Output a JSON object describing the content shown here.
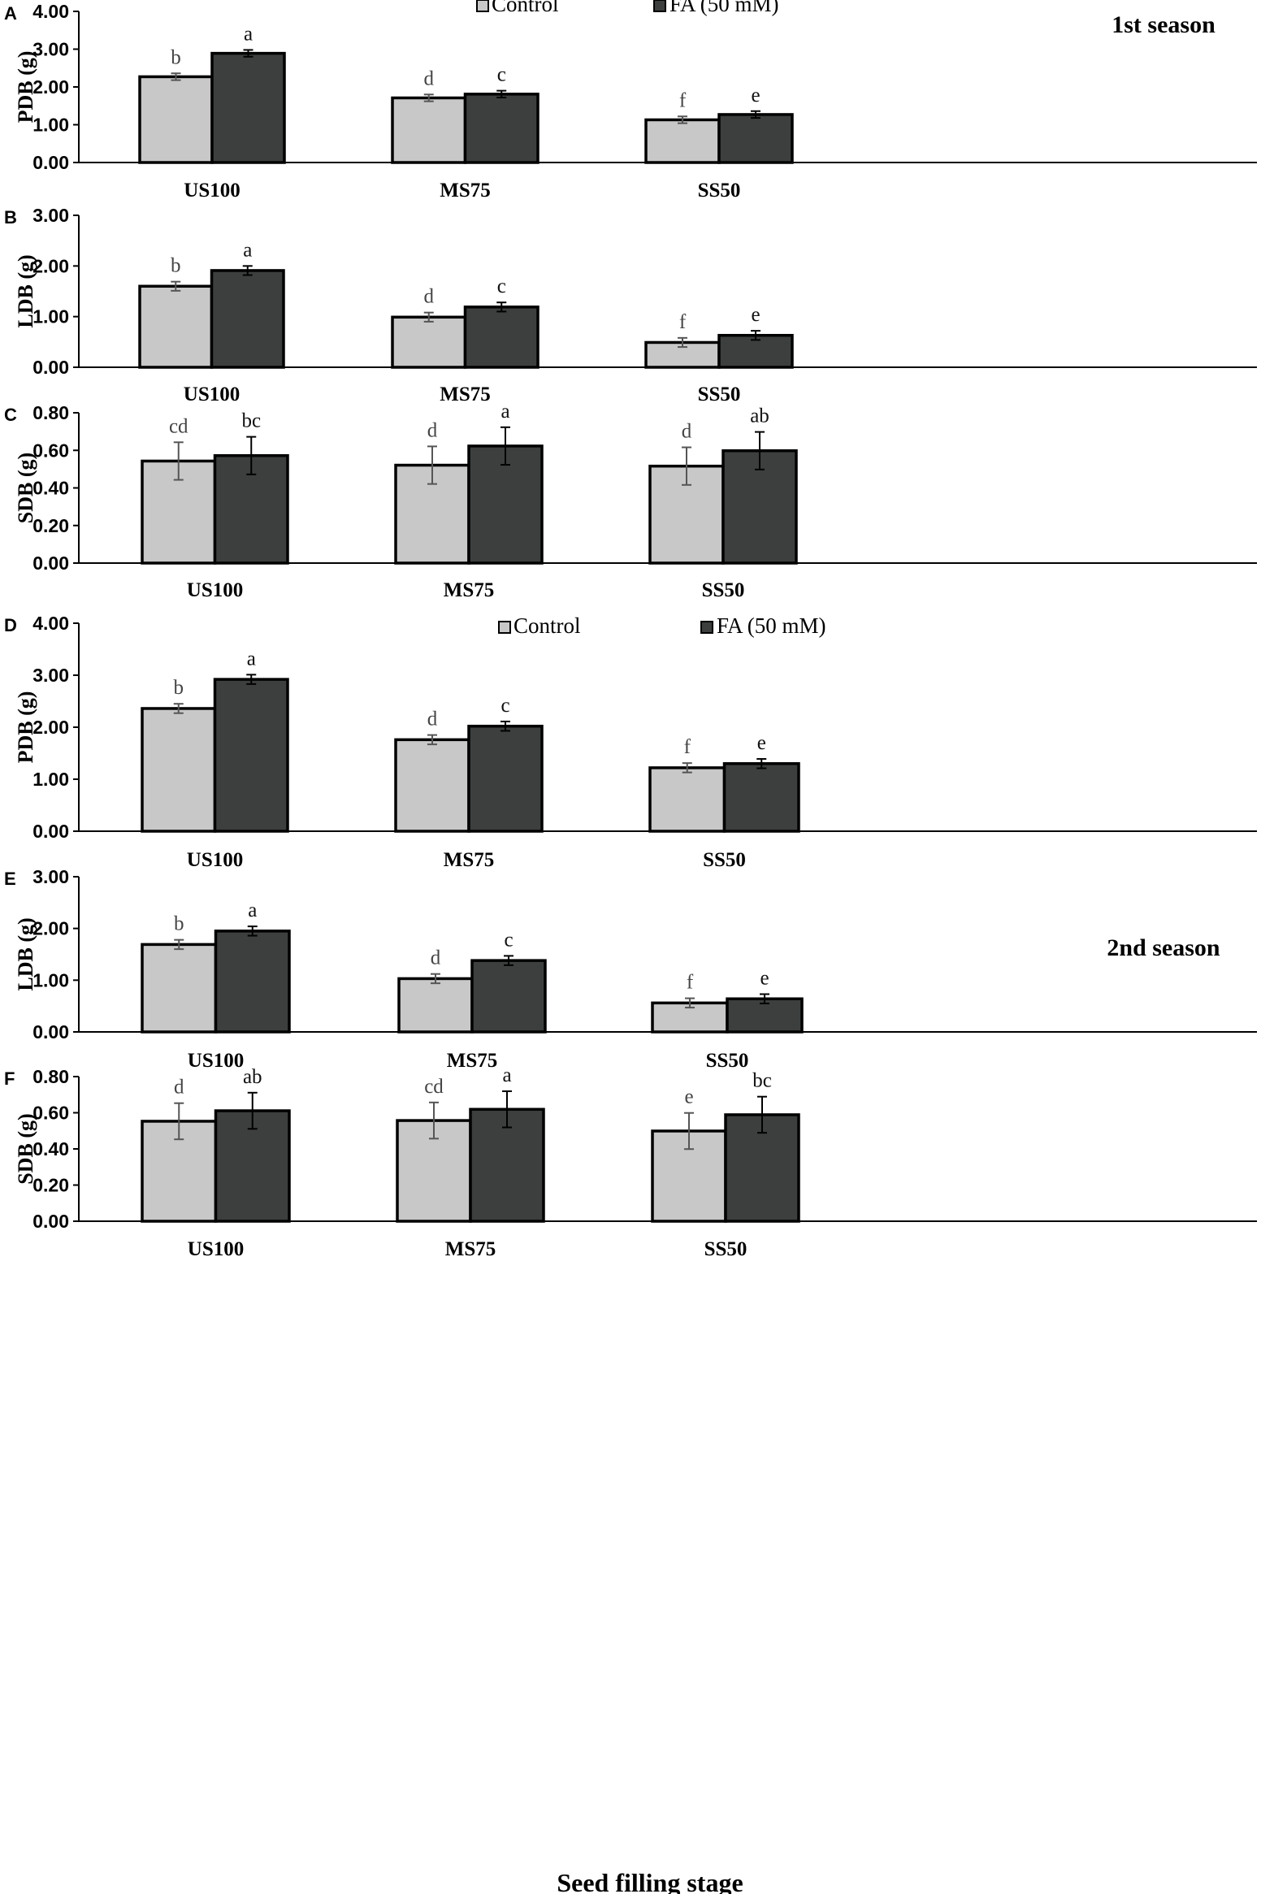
{
  "legend": {
    "control": "Control",
    "fa": "FA (50 mM)"
  },
  "colors": {
    "control": "#c8c8c8",
    "fa": "#3d3f3f",
    "outline": "#000000"
  },
  "x_title": "Seed filling stage",
  "chart_data": [
    {
      "panel": "A",
      "type": "bar",
      "ylabel": "PDB (g)",
      "season": "1st season",
      "ylim": [
        0,
        4
      ],
      "yticks": [
        "0.00",
        "1.00",
        "2.00",
        "3.00",
        "4.00"
      ],
      "categories": [
        "US100",
        "MS75",
        "SS50"
      ],
      "series": [
        {
          "name": "Control",
          "values": [
            2.27,
            1.71,
            1.13
          ],
          "errors": [
            0.09,
            0.09,
            0.09
          ],
          "letters": [
            "b",
            "d",
            "f"
          ]
        },
        {
          "name": "FA (50 mM)",
          "values": [
            2.89,
            1.81,
            1.27
          ],
          "errors": [
            0.09,
            0.09,
            0.09
          ],
          "letters": [
            "a",
            "c",
            "e"
          ]
        }
      ]
    },
    {
      "panel": "B",
      "type": "bar",
      "ylabel": "LDB (g)",
      "season": "",
      "ylim": [
        0,
        3
      ],
      "yticks": [
        "0.00",
        "1.00",
        "2.00",
        "3.00"
      ],
      "categories": [
        "US100",
        "MS75",
        "SS50"
      ],
      "series": [
        {
          "name": "Control",
          "values": [
            1.6,
            0.99,
            0.49
          ],
          "errors": [
            0.09,
            0.09,
            0.09
          ],
          "letters": [
            "b",
            "d",
            "f"
          ]
        },
        {
          "name": "FA (50 mM)",
          "values": [
            1.91,
            1.19,
            0.63
          ],
          "errors": [
            0.09,
            0.09,
            0.09
          ],
          "letters": [
            "a",
            "c",
            "e"
          ]
        }
      ]
    },
    {
      "panel": "C",
      "type": "bar",
      "ylabel": "SDB (g)",
      "season": "",
      "ylim": [
        0,
        0.8
      ],
      "yticks": [
        "0.00",
        "0.20",
        "0.40",
        "0.60",
        "0.80"
      ],
      "categories": [
        "US100",
        "MS75",
        "SS50"
      ],
      "series": [
        {
          "name": "Control",
          "values": [
            0.543,
            0.521,
            0.516
          ],
          "errors": [
            0.1,
            0.1,
            0.1
          ],
          "letters": [
            "cd",
            "d",
            "d"
          ]
        },
        {
          "name": "FA (50 mM)",
          "values": [
            0.572,
            0.623,
            0.598
          ],
          "errors": [
            0.1,
            0.1,
            0.1
          ],
          "letters": [
            "bc",
            "a",
            "ab"
          ]
        }
      ]
    },
    {
      "panel": "D",
      "type": "bar",
      "ylabel": "PDB (g)",
      "season": "2nd season",
      "ylim": [
        0,
        4
      ],
      "yticks": [
        "0.00",
        "1.00",
        "2.00",
        "3.00",
        "4.00"
      ],
      "categories": [
        "US100",
        "MS75",
        "SS50"
      ],
      "series": [
        {
          "name": "Control",
          "values": [
            2.36,
            1.76,
            1.22
          ],
          "errors": [
            0.09,
            0.09,
            0.09
          ],
          "letters": [
            "b",
            "d",
            "f"
          ]
        },
        {
          "name": "FA (50 mM)",
          "values": [
            2.92,
            2.02,
            1.3
          ],
          "errors": [
            0.09,
            0.09,
            0.09
          ],
          "letters": [
            "a",
            "c",
            "e"
          ]
        }
      ]
    },
    {
      "panel": "E",
      "type": "bar",
      "ylabel": "LDB (g)",
      "season": "",
      "ylim": [
        0,
        3
      ],
      "yticks": [
        "0.00",
        "1.00",
        "2.00",
        "3.00"
      ],
      "categories": [
        "US100",
        "MS75",
        "SS50"
      ],
      "series": [
        {
          "name": "Control",
          "values": [
            1.69,
            1.03,
            0.56
          ],
          "errors": [
            0.09,
            0.09,
            0.09
          ],
          "letters": [
            "b",
            "d",
            "f"
          ]
        },
        {
          "name": "FA (50 mM)",
          "values": [
            1.95,
            1.38,
            0.64
          ],
          "errors": [
            0.09,
            0.09,
            0.09
          ],
          "letters": [
            "a",
            "c",
            "e"
          ]
        }
      ]
    },
    {
      "panel": "F",
      "type": "bar",
      "ylabel": "SDB (g)",
      "season": "",
      "ylim": [
        0,
        0.8
      ],
      "yticks": [
        "0.00",
        "0.20",
        "0.40",
        "0.60",
        "0.80"
      ],
      "categories": [
        "US100",
        "MS75",
        "SS50"
      ],
      "series": [
        {
          "name": "Control",
          "values": [
            0.553,
            0.557,
            0.499
          ],
          "errors": [
            0.1,
            0.1,
            0.1
          ],
          "letters": [
            "d",
            "cd",
            "e"
          ]
        },
        {
          "name": "FA (50 mM)",
          "values": [
            0.611,
            0.619,
            0.589
          ],
          "errors": [
            0.1,
            0.1,
            0.1
          ],
          "letters": [
            "ab",
            "a",
            "bc"
          ]
        }
      ]
    }
  ]
}
